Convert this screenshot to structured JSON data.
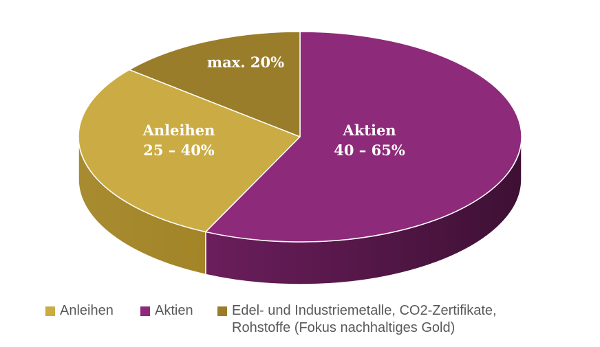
{
  "chart_data": {
    "type": "pie",
    "style": "3d",
    "title": "",
    "slices": [
      {
        "key": "aktien",
        "label": "Aktien",
        "range": "40 – 65%",
        "share": 0.57,
        "color": "#8e2a7a"
      },
      {
        "key": "anleihen",
        "label": "Anleihen",
        "range": "25 – 40%",
        "share": 0.29,
        "color": "#cbac44"
      },
      {
        "key": "edel",
        "label": "",
        "range": "max. 20%",
        "share": 0.14,
        "color": "#9a7d2a"
      }
    ],
    "legend": {
      "position": "bottom",
      "entries": [
        {
          "text": "Anleihen",
          "color": "#cbac44"
        },
        {
          "text": "Aktien",
          "color": "#8e2a7a"
        },
        {
          "text": "Edel- und Industriemetalle, CO2-Zertifikate,\nRohstoffe (Fokus nachhaltiges Gold)",
          "color": "#9a7d2a"
        }
      ]
    }
  }
}
